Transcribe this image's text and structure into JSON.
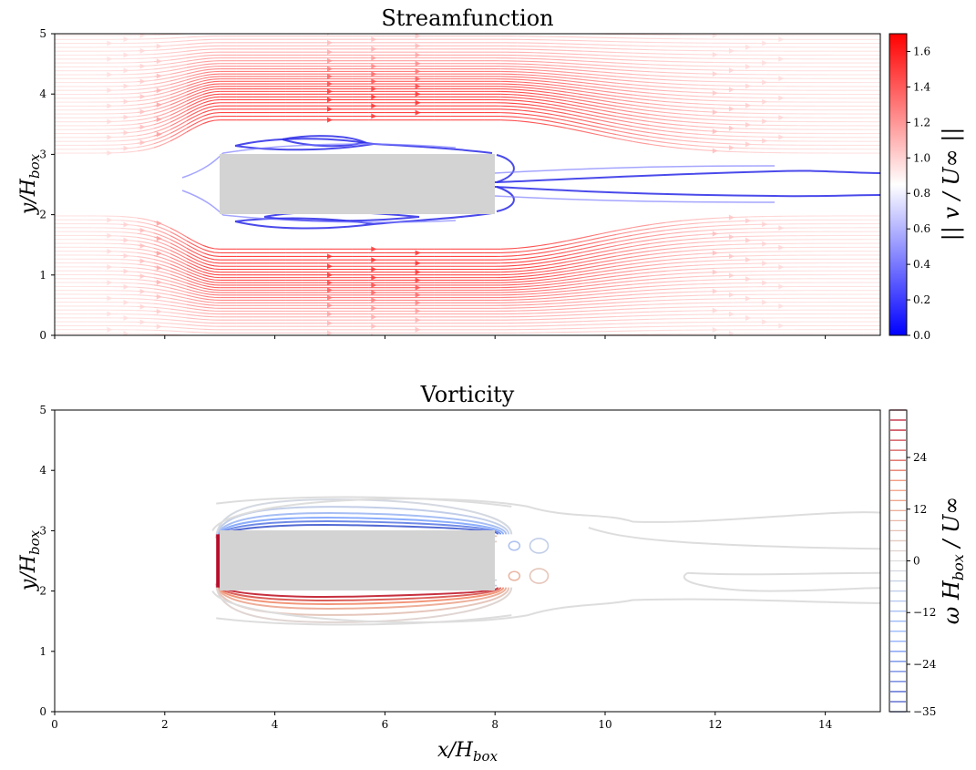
{
  "chart_data": [
    {
      "type": "streamplot",
      "title": "Streamfunction",
      "xlabel": "",
      "ylabel": "y/H_box",
      "xlim": [
        0,
        15
      ],
      "ylim": [
        0,
        5
      ],
      "xticks": [
        0,
        2,
        4,
        6,
        8,
        10,
        12,
        14
      ],
      "xticklabels_visible": false,
      "yticks": [
        0,
        1,
        2,
        3,
        4,
        5
      ],
      "obstacle": {
        "x": [
          3,
          8
        ],
        "y": [
          2,
          3
        ],
        "color": "#d3d3d3"
      },
      "colormap": "bwr",
      "colorbar": {
        "label": "|| v / U∞ ||",
        "range": [
          0.0,
          1.7
        ],
        "ticks": [
          0.0,
          0.2,
          0.4,
          0.6,
          0.8,
          1.0,
          1.2,
          1.4,
          1.6
        ]
      },
      "uniform_inflow_speed": 1.0,
      "max_speed_near_box": 1.55,
      "grid": false
    },
    {
      "type": "contour",
      "title": "Vorticity",
      "xlabel": "x/H_box",
      "ylabel": "y/H_box",
      "xlim": [
        0,
        15
      ],
      "ylim": [
        0,
        5
      ],
      "xticks": [
        0,
        2,
        4,
        6,
        8,
        10,
        12,
        14
      ],
      "yticks": [
        0,
        1,
        2,
        3,
        4,
        5
      ],
      "obstacle": {
        "x": [
          3,
          8
        ],
        "y": [
          2,
          3
        ],
        "color": "#d3d3d3"
      },
      "colormap": "coolwarm",
      "colorbar": {
        "label": "ω H_box / U∞",
        "range": [
          -35,
          35
        ],
        "ticks": [
          -35,
          -24,
          -12,
          0,
          12,
          24
        ],
        "levels": 30
      },
      "grid": false
    }
  ],
  "top": {
    "title": "Streamfunction",
    "ylabel": "y/H",
    "ylabel_sub": "box",
    "ytick_labels": [
      "0",
      "1",
      "2",
      "3",
      "4",
      "5"
    ],
    "cb_tick_labels": [
      "0.0",
      "0.2",
      "0.4",
      "0.6",
      "0.8",
      "1.0",
      "1.2",
      "1.4",
      "1.6"
    ],
    "cb_label": "|| v / U∞ ||"
  },
  "bottom": {
    "title": "Vorticity",
    "xlabel": "x/H",
    "xlabel_sub": "box",
    "ylabel": "y/H",
    "ylabel_sub": "box",
    "xtick_labels": [
      "0",
      "2",
      "4",
      "6",
      "8",
      "10",
      "12",
      "14"
    ],
    "ytick_labels": [
      "0",
      "1",
      "2",
      "3",
      "4",
      "5"
    ],
    "cb_tick_labels": [
      "−35",
      "−24",
      "−12",
      "0",
      "12",
      "24"
    ],
    "cb_label": "ω H",
    "cb_label_sub": "box",
    "cb_label_tail": " / U∞"
  },
  "colors": {
    "obstacle": "#d3d3d3",
    "stream_fast": "#ff2a2a",
    "stream_slow": "#1f1fff",
    "vort_pos": "#b40426",
    "vort_neg": "#3b4cc0",
    "vort_zero": "#dddddd"
  }
}
